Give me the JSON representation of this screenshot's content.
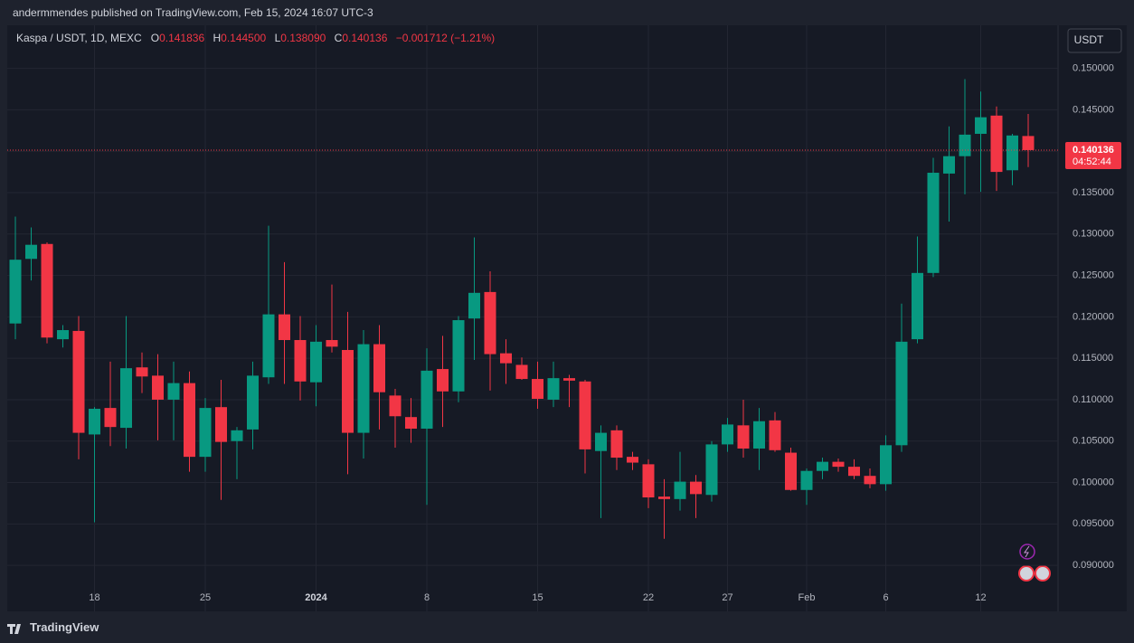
{
  "header": "andermmendes published on TradingView.com, Feb 15, 2024 16:07 UTC-3",
  "legend": {
    "symbol": "Kaspa / USDT, 1D, MEXC",
    "o_label": "O",
    "o": "0.141836",
    "h_label": "H",
    "h": "0.144500",
    "l_label": "L",
    "l": "0.138090",
    "c_label": "C",
    "c": "0.140136",
    "change": "−0.001712 (−1.21%)"
  },
  "currency_button": "USDT",
  "price_tag": {
    "price": "0.140136",
    "countdown": "04:52:44"
  },
  "footer": "TradingView",
  "chart_data": {
    "type": "candlestick",
    "categories": [
      null,
      null,
      null,
      null,
      null,
      "18",
      null,
      null,
      null,
      null,
      null,
      null,
      "25",
      null,
      null,
      null,
      null,
      null,
      null,
      "2024",
      null,
      null,
      null,
      null,
      null,
      null,
      "8",
      null,
      null,
      null,
      null,
      null,
      null,
      "15",
      null,
      null,
      null,
      null,
      null,
      null,
      "22",
      null,
      null,
      null,
      null,
      "27",
      null,
      null,
      null,
      null,
      "Feb",
      null,
      null,
      null,
      null,
      "6",
      null,
      null,
      null,
      null,
      null,
      "12",
      null,
      null,
      null
    ],
    "open": [
      0.1192,
      0.127,
      0.1288,
      0.1173,
      0.1183,
      0.1058,
      0.109,
      0.1066,
      0.1139,
      0.1129,
      0.11,
      0.112,
      0.1031,
      0.1091,
      0.105,
      0.1064,
      0.1127,
      0.1203,
      0.1172,
      0.1121,
      0.1172,
      0.116,
      0.106,
      0.1167,
      0.1105,
      0.1079,
      0.1065,
      0.1137,
      0.111,
      0.1198,
      0.123,
      0.1156,
      0.1142,
      0.1125,
      0.11,
      0.1126,
      0.1122,
      0.1038,
      0.1063,
      0.1031,
      0.1022,
      0.0983,
      0.098,
      0.1001,
      0.0985,
      0.1046,
      0.1069,
      0.1041,
      0.1075,
      0.1036,
      0.0991,
      0.1014,
      0.1025,
      0.1019,
      0.1008,
      0.0998,
      0.1045,
      0.1173,
      0.1253,
      0.1373,
      0.1394,
      0.1421,
      0.1443,
      0.1377,
      0.141836
    ],
    "high": [
      0.1321,
      0.1308,
      0.129,
      0.119,
      0.1201,
      0.1091,
      0.1146,
      0.1201,
      0.1157,
      0.1155,
      0.1146,
      0.1134,
      0.1102,
      0.1124,
      0.1067,
      0.1146,
      0.131,
      0.1266,
      0.1201,
      0.119,
      0.1239,
      0.1206,
      0.1184,
      0.119,
      0.1113,
      0.1102,
      0.1162,
      0.1177,
      0.1201,
      0.1296,
      0.1255,
      0.1173,
      0.1151,
      0.1146,
      0.1146,
      0.113,
      0.1124,
      0.1069,
      0.1069,
      0.1037,
      0.1028,
      0.1004,
      0.1037,
      0.1009,
      0.105,
      0.1078,
      0.11,
      0.109,
      0.1085,
      0.1042,
      0.1017,
      0.103,
      0.1029,
      0.1028,
      0.1017,
      0.1057,
      0.1216,
      0.1297,
      0.1392,
      0.143,
      0.1487,
      0.1472,
      0.1454,
      0.1421,
      0.1445
    ],
    "low": [
      0.1173,
      0.1244,
      0.1168,
      0.1163,
      0.1028,
      0.0952,
      0.1044,
      0.1041,
      0.1108,
      0.1051,
      0.1051,
      0.1013,
      0.1013,
      0.0979,
      0.1004,
      0.104,
      0.1119,
      0.1119,
      0.1099,
      0.1092,
      0.1157,
      0.101,
      0.1029,
      0.1064,
      0.1042,
      0.1048,
      0.0973,
      0.1067,
      0.1097,
      0.1148,
      0.1111,
      0.1119,
      0.1124,
      0.1089,
      0.1091,
      0.1091,
      0.1011,
      0.0957,
      0.1015,
      0.1015,
      0.0969,
      0.0932,
      0.0966,
      0.0957,
      0.0977,
      0.1037,
      0.103,
      0.1015,
      0.1037,
      0.099,
      0.0973,
      0.1004,
      0.1013,
      0.1004,
      0.0993,
      0.099,
      0.1037,
      0.1168,
      0.1248,
      0.1315,
      0.1348,
      0.1351,
      0.1352,
      0.1359,
      0.13809
    ],
    "close": [
      0.1269,
      0.1287,
      0.1175,
      0.1184,
      0.106,
      0.1089,
      0.1067,
      0.1138,
      0.1128,
      0.11,
      0.112,
      0.1031,
      0.109,
      0.1049,
      0.1063,
      0.1129,
      0.1203,
      0.1172,
      0.1122,
      0.117,
      0.1164,
      0.106,
      0.1167,
      0.1109,
      0.108,
      0.1065,
      0.1135,
      0.111,
      0.1196,
      0.1229,
      0.1155,
      0.1144,
      0.1125,
      0.1101,
      0.1126,
      0.1123,
      0.104,
      0.106,
      0.103,
      0.1024,
      0.0982,
      0.098,
      0.1001,
      0.0986,
      0.1046,
      0.107,
      0.1041,
      0.1074,
      0.1039,
      0.0991,
      0.1014,
      0.1025,
      0.1019,
      0.1008,
      0.0998,
      0.1045,
      0.117,
      0.1253,
      0.1374,
      0.1394,
      0.142,
      0.1441,
      0.1375,
      0.1419,
      0.140136
    ],
    "up_color": "#089981",
    "down_color": "#f23645",
    "ylim": [
      0.0875,
      0.1552
    ],
    "yticks": [
      {
        "value": 0.09,
        "label": "0.090000"
      },
      {
        "value": 0.095,
        "label": "0.095000"
      },
      {
        "value": 0.1,
        "label": "0.100000"
      },
      {
        "value": 0.105,
        "label": "0.105000"
      },
      {
        "value": 0.11,
        "label": "0.110000"
      },
      {
        "value": 0.115,
        "label": "0.115000"
      },
      {
        "value": 0.12,
        "label": "0.120000"
      },
      {
        "value": 0.125,
        "label": "0.125000"
      },
      {
        "value": 0.13,
        "label": "0.130000"
      },
      {
        "value": 0.135,
        "label": "0.135000"
      },
      {
        "value": 0.14,
        "label": "0.140000"
      },
      {
        "value": 0.145,
        "label": "0.145000"
      },
      {
        "value": 0.15,
        "label": "0.150000"
      }
    ],
    "grid": true
  }
}
